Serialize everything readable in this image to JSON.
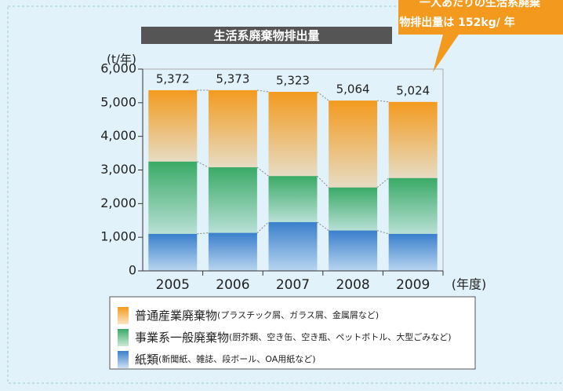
{
  "chart_data": {
    "type": "stacked_bar",
    "title": "生活系廃棄物排出量",
    "y_label": "(t/年)",
    "x_label": "(年度)",
    "categories": [
      "2005",
      "2006",
      "2007",
      "2008",
      "2009"
    ],
    "series": [
      {
        "name": "紙類",
        "note": "(新聞紙、雑誌、段ボール、OA用紙など)",
        "color": "#3a7fcc",
        "values": [
          1100,
          1130,
          1450,
          1200,
          1100
        ]
      },
      {
        "name": "事業系一般廃棄物",
        "note": "(厨芥類、空き缶、空き瓶、ペットボトル、大型ごみなど)",
        "color": "#3aaa66",
        "values": [
          2150,
          1950,
          1370,
          1280,
          1660
        ]
      },
      {
        "name": "普通産業廃棄物",
        "note": "(プラスチック屑、ガラス屑、金属屑など)",
        "color": "#f39a1e",
        "values": [
          2122,
          2293,
          2503,
          2584,
          2264
        ]
      }
    ],
    "totals": [
      5372,
      5373,
      5323,
      5064,
      5024
    ],
    "total_labels": [
      "5,372",
      "5,373",
      "5,323",
      "5,064",
      "5,024"
    ],
    "ylim": [
      0,
      6000
    ],
    "yticks": [
      0,
      {
        "value": 1000,
        "label": "1,000"
      },
      {
        "value": 2000,
        "label": "2,000"
      },
      {
        "value": 3000,
        "label": "3,000"
      },
      {
        "value": 4000,
        "label": "4,000"
      },
      {
        "value": 5000,
        "label": "5,000"
      },
      {
        "value": 6000,
        "label": "6,000"
      }
    ],
    "callout": [
      "一人あたりの生活系廃棄",
      "物排出量は 152kg/ 年"
    ]
  }
}
